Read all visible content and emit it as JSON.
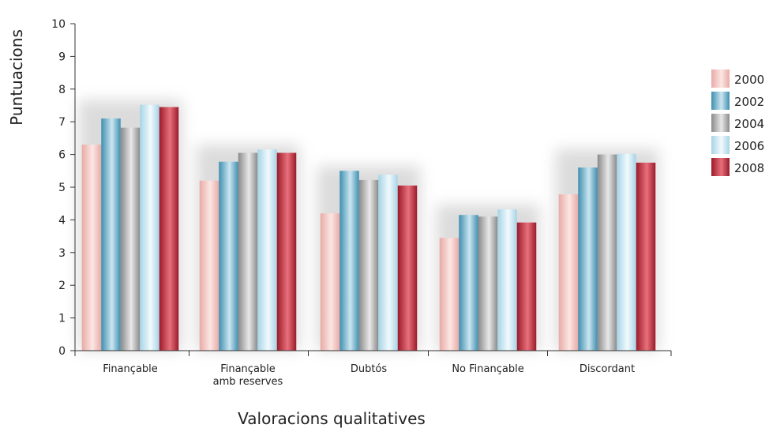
{
  "chart_data": {
    "type": "bar",
    "xlabel": "Valoracions qualitatives",
    "ylabel": "Puntuacions",
    "ylim": [
      0,
      10
    ],
    "yticks": [
      "0",
      "1",
      "2",
      "3",
      "4",
      "5",
      "6",
      "7",
      "8",
      "9",
      "10"
    ],
    "categories": [
      [
        "Finançable"
      ],
      [
        "Finançable",
        "amb reserves"
      ],
      [
        "Dubtós"
      ],
      [
        "No Finançable"
      ],
      [
        "Discordant"
      ]
    ],
    "series": [
      {
        "name": "2000",
        "values": [
          6.3,
          5.2,
          4.2,
          3.45,
          4.78
        ]
      },
      {
        "name": "2002",
        "values": [
          7.1,
          5.78,
          5.5,
          4.15,
          5.6
        ]
      },
      {
        "name": "2004",
        "values": [
          6.82,
          6.05,
          5.22,
          4.1,
          6.0
        ]
      },
      {
        "name": "2006",
        "values": [
          7.52,
          6.15,
          5.38,
          4.32,
          6.02
        ]
      },
      {
        "name": "2008",
        "values": [
          7.45,
          6.05,
          5.05,
          3.92,
          5.75
        ]
      }
    ],
    "legend_position": "right",
    "grid": false
  },
  "colors": {
    "2000": [
      "#e9aaa6",
      "#fbe7e4"
    ],
    "2002": [
      "#3f8fb0",
      "#cbe6f0"
    ],
    "2004": [
      "#8a8a8a",
      "#e8e8e8"
    ],
    "2006": [
      "#a6d4e6",
      "#f2fafd"
    ],
    "2008": [
      "#9b1a2a",
      "#e8707b"
    ]
  }
}
